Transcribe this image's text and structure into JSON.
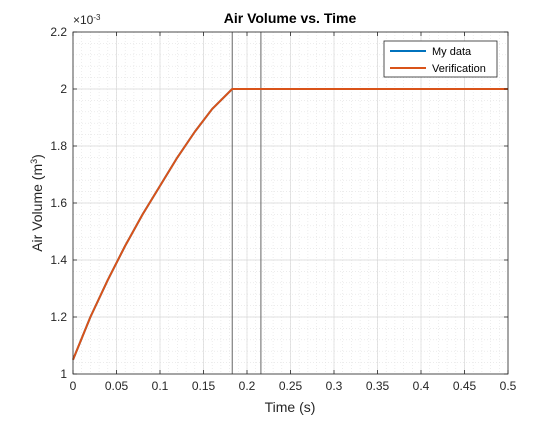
{
  "chart_data": {
    "type": "line",
    "title": "Air Volume vs. Time",
    "xlabel": "Time (s)",
    "ylabel_main": "Air Volume (m",
    "ylabel_sup": "3",
    "ylabel_end": ")",
    "y_exponent_prefix": "×10",
    "y_exponent_power": "-3",
    "xlim": [
      0,
      0.5
    ],
    "ylim": [
      1,
      2.2
    ],
    "x_ticks": [
      0,
      0.05,
      0.1,
      0.15,
      0.2,
      0.25,
      0.3,
      0.35,
      0.4,
      0.45,
      0.5
    ],
    "x_tick_labels": [
      "0",
      "0.05",
      "0.1",
      "0.15",
      "0.2",
      "0.25",
      "0.3",
      "0.35",
      "0.4",
      "0.45",
      "0.5"
    ],
    "y_ticks": [
      1,
      1.2,
      1.4,
      1.6,
      1.8,
      2,
      2.2
    ],
    "y_tick_labels": [
      "1",
      "1.2",
      "1.4",
      "1.6",
      "1.8",
      "2",
      "2.2"
    ],
    "grid": true,
    "minor_grid": true,
    "legend_position": "top-right",
    "vertical_lines": [
      0.183,
      0.216
    ],
    "series": [
      {
        "name": "My data",
        "color": "#0072BD",
        "x": [
          0,
          0.02,
          0.04,
          0.06,
          0.08,
          0.1,
          0.12,
          0.14,
          0.16,
          0.183,
          0.216,
          0.3,
          0.4,
          0.5
        ],
        "y": [
          1.05,
          1.2,
          1.33,
          1.45,
          1.56,
          1.66,
          1.76,
          1.85,
          1.93,
          2.0,
          2.0,
          2.0,
          2.0,
          2.0
        ]
      },
      {
        "name": "Verification",
        "color": "#D95319",
        "x": [
          0,
          0.02,
          0.04,
          0.06,
          0.08,
          0.1,
          0.12,
          0.14,
          0.16,
          0.183,
          0.216,
          0.3,
          0.4,
          0.5
        ],
        "y": [
          1.05,
          1.2,
          1.33,
          1.45,
          1.56,
          1.66,
          1.76,
          1.85,
          1.93,
          2.0,
          2.0,
          2.0,
          2.0,
          2.0
        ]
      }
    ]
  },
  "colors": {
    "axis": "#262626",
    "grid": "#d9d9d9",
    "vline": "#555555"
  }
}
